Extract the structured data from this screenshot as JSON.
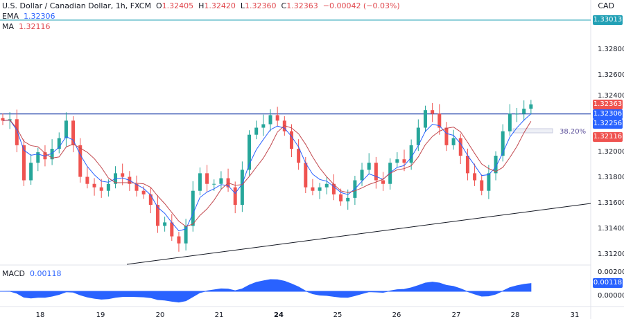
{
  "header": {
    "symbol": "U.S. Dollar / Canadian Dollar, 1h, FXCM",
    "o_label": "O",
    "o": "1.32405",
    "h_label": "H",
    "h": "1.32420",
    "l_label": "L",
    "l": "1.32360",
    "c_label": "C",
    "c": "1.32363",
    "change": "−0.00042 (−0.03%)",
    "ema_label": "EMA",
    "ema": "1.32306",
    "ma_label": "MA",
    "ma": "1.32116",
    "currency": "CAD"
  },
  "macd": {
    "label": "MACD",
    "value": "0.00118"
  },
  "tags": {
    "teal": "1.33013",
    "close": "1.32363",
    "ema": "1.32306",
    "hline": "1.32256",
    "ma": "1.32116",
    "macd": "0.00118"
  },
  "fib_label": "38.20%",
  "colors": {
    "up": "#26a69a",
    "down": "#ef5350",
    "ema": "#2962ff",
    "ma": "#c2484e",
    "hline": "#1e3fa8",
    "teal": "#22a0b5",
    "macd": "#2962ff"
  },
  "chart_data": {
    "type": "candlestick",
    "title": "U.S. Dollar / Canadian Dollar, 1h, FXCM",
    "y_ticks": [
      "1.32800",
      "1.32600",
      "1.32400",
      "1.32000",
      "1.31800",
      "1.31600",
      "1.31400",
      "1.31200"
    ],
    "y_tick_values": [
      1.328,
      1.326,
      1.324,
      1.32,
      1.318,
      1.316,
      1.314,
      1.312
    ],
    "macd_ticks": [
      "0.00200",
      "0.00000"
    ],
    "x_ticks": [
      "18",
      "19",
      "20",
      "21",
      "24",
      "25",
      "26",
      "27",
      "28",
      "31"
    ],
    "ylim": [
      1.3115,
      1.3312
    ],
    "horizontal_line": 1.32256,
    "teal_line": 1.33013,
    "trendline": [
      [
        0.15,
        1.3112
      ],
      [
        1.0,
        1.3161
      ]
    ],
    "closes": [
      1.32236,
      1.32247,
      1.32044,
      1.3177,
      1.31907,
      1.31989,
      1.31934,
      1.32016,
      1.32099,
      1.32236,
      1.32044,
      1.31797,
      1.31742,
      1.31715,
      1.31688,
      1.31742,
      1.31825,
      1.31797,
      1.31742,
      1.31688,
      1.3166,
      1.31578,
      1.31414,
      1.31441,
      1.31332,
      1.31277,
      1.31414,
      1.31688,
      1.31825,
      1.31742,
      1.31742,
      1.31786,
      1.31715,
      1.31578,
      1.31852,
      1.32126,
      1.32181,
      1.32208,
      1.32279,
      1.32236,
      1.32153,
      1.32016,
      1.31907,
      1.31715,
      1.31688,
      1.31715,
      1.31742,
      1.3166,
      1.31605,
      1.31633,
      1.3177,
      1.31852,
      1.31907,
      1.3177,
      1.31742,
      1.31907,
      1.31934,
      1.31907,
      1.32044,
      1.32181,
      1.32318,
      1.3229,
      1.32181,
      1.32044,
      1.32099,
      1.31962,
      1.31825,
      1.3177,
      1.31688,
      1.31825,
      1.31962,
      1.32153,
      1.3229,
      1.3229,
      1.32329,
      1.32363
    ]
  }
}
